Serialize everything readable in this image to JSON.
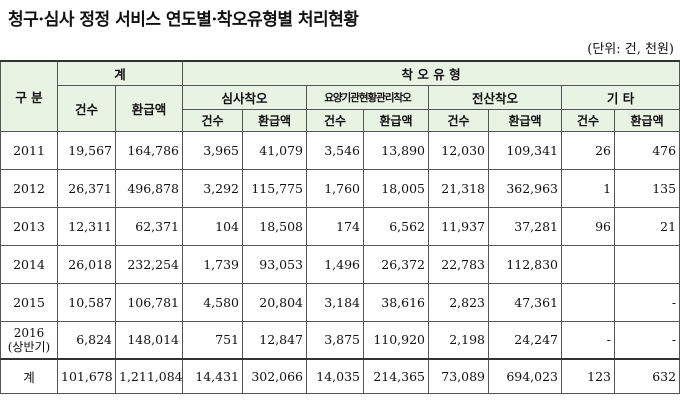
{
  "title": "청구·심사 정정 서비스 연도별·착오유형별 처리현황",
  "unit": "(단위: 건, 천원)",
  "header": {
    "category": "구  분",
    "total": "계",
    "error_type": "착   오   유   형",
    "groups": [
      "심사착오",
      "요양기관현황관리착오",
      "전산착오",
      "기  타"
    ],
    "count": "건수",
    "refund": "환급액"
  },
  "rows": [
    {
      "year": "2011",
      "values": [
        "19,567",
        "164,786",
        "3,965",
        "41,079",
        "3,546",
        "13,890",
        "12,030",
        "109,341",
        "26",
        "476"
      ]
    },
    {
      "year": "2012",
      "values": [
        "26,371",
        "496,878",
        "3,292",
        "115,775",
        "1,760",
        "18,005",
        "21,318",
        "362,963",
        "1",
        "135"
      ]
    },
    {
      "year": "2013",
      "values": [
        "12,311",
        "62,371",
        "104",
        "18,508",
        "174",
        "6,562",
        "11,937",
        "37,281",
        "96",
        "21"
      ]
    },
    {
      "year": "2014",
      "values": [
        "26,018",
        "232,254",
        "1,739",
        "93,053",
        "1,496",
        "26,372",
        "22,783",
        "112,830",
        "",
        ""
      ]
    },
    {
      "year": "2015",
      "values": [
        "10,587",
        "106,781",
        "4,580",
        "20,804",
        "3,184",
        "38,616",
        "2,823",
        "47,361",
        "",
        "-"
      ]
    },
    {
      "year": "2016",
      "year_sub": "(상반기)",
      "values": [
        "6,824",
        "148,014",
        "751",
        "12,847",
        "3,875",
        "110,920",
        "2,198",
        "24,247",
        "-",
        "-"
      ]
    }
  ],
  "total_row": {
    "label": "계",
    "values": [
      "101,678",
      "1,211,084",
      "14,431",
      "302,066",
      "14,035",
      "214,365",
      "73,089",
      "694,023",
      "123",
      "632"
    ]
  }
}
